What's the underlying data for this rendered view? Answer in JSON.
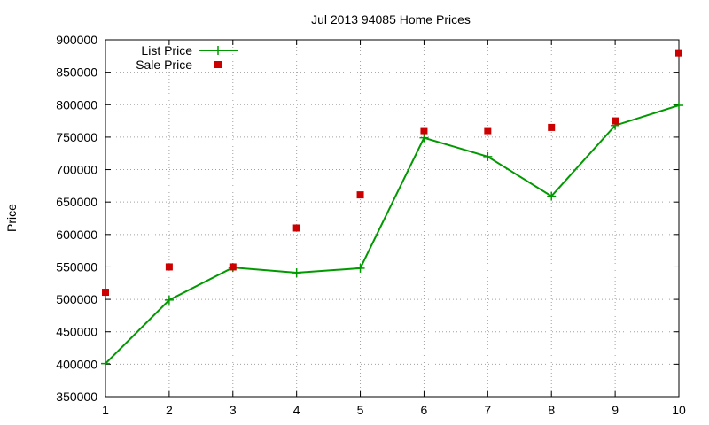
{
  "chart_data": {
    "type": "line",
    "title": "Jul 2013 94085 Home Prices",
    "xlabel": "",
    "ylabel": "Price",
    "x": [
      1,
      2,
      3,
      4,
      5,
      6,
      7,
      8,
      9,
      10
    ],
    "xlim": [
      1,
      10
    ],
    "ylim": [
      350000,
      900000
    ],
    "y_ticks": [
      350000,
      400000,
      450000,
      500000,
      550000,
      600000,
      650000,
      700000,
      750000,
      800000,
      850000,
      900000
    ],
    "grid": true,
    "legend_position": "top-left",
    "series": [
      {
        "name": "List Price",
        "style": "line-with-plus-markers",
        "color": "#009900",
        "values": [
          401000,
          499000,
          549000,
          541000,
          548000,
          749000,
          720000,
          659000,
          768000,
          799000
        ]
      },
      {
        "name": "Sale Price",
        "style": "square-markers",
        "color": "#cc0000",
        "values": [
          511000,
          550000,
          550000,
          610000,
          661000,
          760000,
          760000,
          765000,
          775000,
          880000
        ]
      }
    ]
  }
}
